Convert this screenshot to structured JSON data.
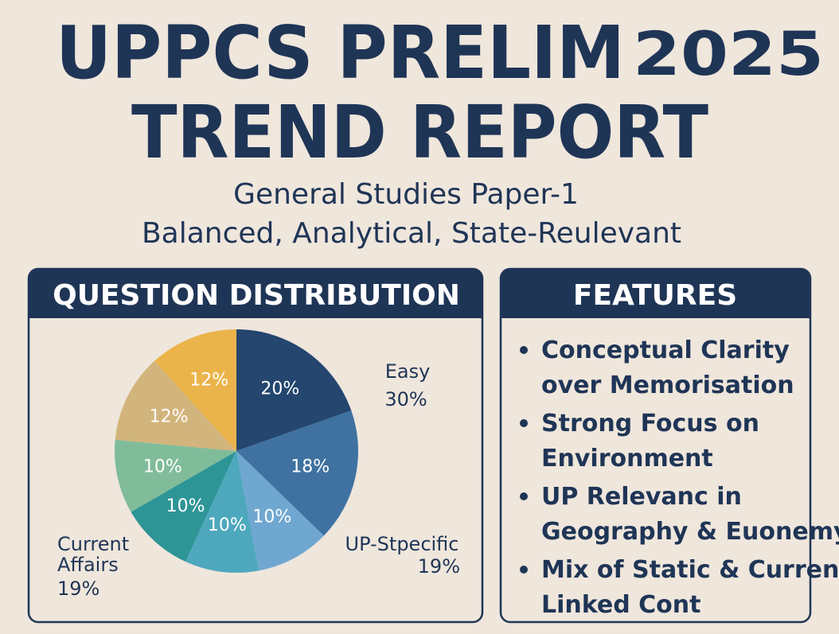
{
  "header": {
    "title_line1": "UPPCS PRELIM",
    "title_year": "2025",
    "title_line2": "TREND REPORT",
    "subtitle_line1": "General Studies Paper-1",
    "subtitle_line2": "Balanced, Analytical, State-Reulevant"
  },
  "chart_data": {
    "type": "pie",
    "title": "QUESTION DISTRIBUTION",
    "values": [
      20,
      18,
      10,
      10,
      10,
      10,
      12,
      12
    ],
    "value_labels": [
      "20%",
      "18%",
      "10%",
      "10%",
      "10%",
      "10%",
      "12%",
      "12%"
    ],
    "colors": [
      "#24466f",
      "#3f72a1",
      "#6fa7d1",
      "#4ea8bd",
      "#2e9597",
      "#80bc9a",
      "#d2b57c",
      "#ebb44b"
    ],
    "annotations": [
      {
        "text": "Easy",
        "value": 30,
        "value_label": "30%"
      },
      {
        "text": "UP-Stpecific",
        "value": 19,
        "value_label": "19%"
      },
      {
        "text": "Current Affairs",
        "value": 19,
        "value_label": "19%"
      }
    ]
  },
  "features": {
    "title": "FEATURES",
    "items": [
      [
        "Conceptual Clarity",
        "over Memorisation"
      ],
      [
        "Strong Focus on",
        "Environment"
      ],
      [
        "UP Relevanc in",
        "Geography & Euonemy"
      ],
      [
        "Mix of Static & Current-",
        "Linked Cont"
      ]
    ]
  }
}
